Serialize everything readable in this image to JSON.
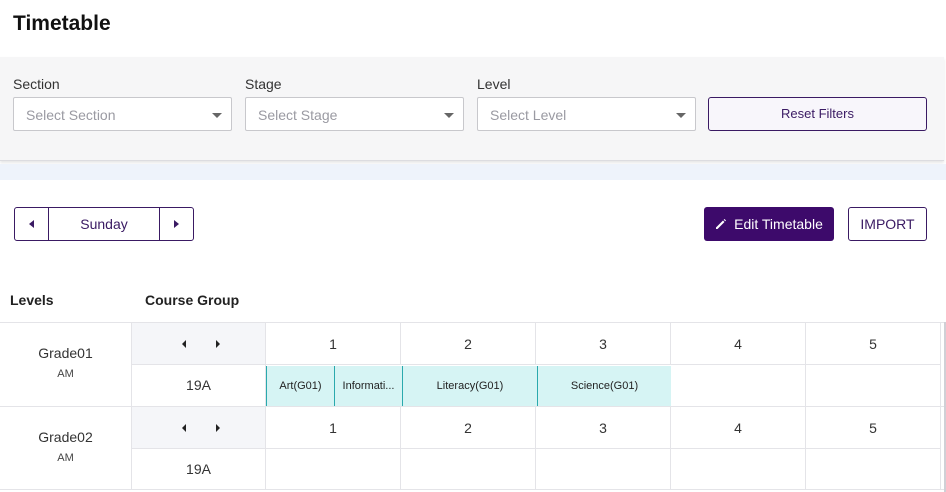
{
  "page": {
    "title": "Timetable"
  },
  "filters": {
    "section": {
      "label": "Section",
      "placeholder": "Select Section"
    },
    "stage": {
      "label": "Stage",
      "placeholder": "Select Stage"
    },
    "level": {
      "label": "Level",
      "placeholder": "Select Level"
    },
    "reset_label": "Reset Filters"
  },
  "day_nav": {
    "current_day": "Sunday"
  },
  "actions": {
    "edit_label": "Edit Timetable",
    "import_label": "IMPORT"
  },
  "columns": {
    "levels": "Levels",
    "course_group": "Course Group"
  },
  "periods": [
    "1",
    "2",
    "3",
    "4",
    "5"
  ],
  "rows": [
    {
      "level": "Grade01",
      "shift": "AM",
      "course_group": "19A",
      "lessons": [
        "Art(G01)",
        "Informati...",
        "Literacy(G01)",
        "Science(G01)"
      ]
    },
    {
      "level": "Grade02",
      "shift": "AM",
      "course_group": "19A",
      "lessons": []
    }
  ],
  "colors": {
    "primary": "#3d0a6b",
    "lesson_bg": "#d6f4f4",
    "lesson_border": "#2aa9ad"
  },
  "icons": [
    "caret-down-icon",
    "chevron-left-icon",
    "chevron-right-icon",
    "pencil-icon"
  ]
}
